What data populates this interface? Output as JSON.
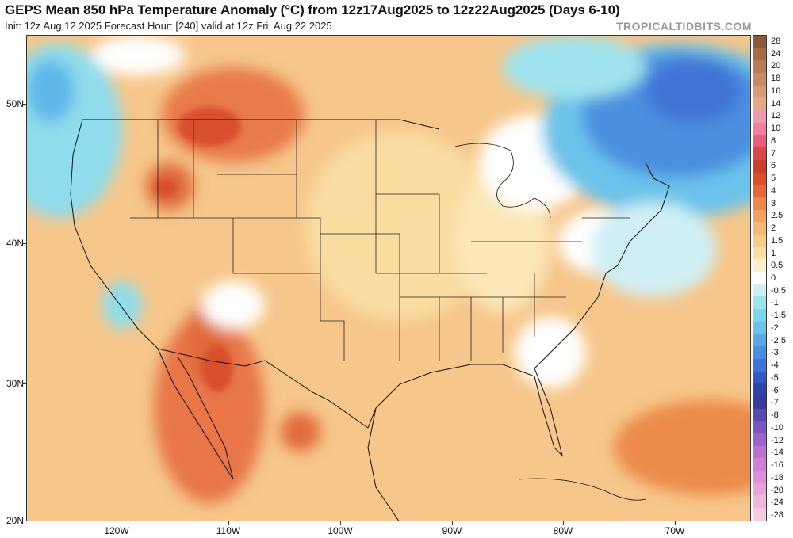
{
  "header": {
    "title": "GEPS Mean 850 hPa Temperature Anomaly (°C) from 12z17Aug2025 to 12z22Aug2025 (Days 6-10)",
    "subtitle": "Init: 12z Aug 12 2025   Forecast Hour: [240]   valid at 12z Fri, Aug 22 2025",
    "brand": "TROPICALTIDBITS.COM"
  },
  "axes": {
    "lat_labels": [
      "50N",
      "40N",
      "30N",
      "20N"
    ],
    "lon_labels": [
      "120W",
      "110W",
      "100W",
      "90W",
      "80W",
      "70W"
    ]
  },
  "colorbar": {
    "levels": [
      "28",
      "24",
      "20",
      "18",
      "16",
      "14",
      "12",
      "10",
      "8",
      "7",
      "6",
      "5",
      "4",
      "3",
      "2.5",
      "2",
      "1.5",
      "1",
      "0.5",
      "0",
      "-0.5",
      "-1",
      "-1.5",
      "-2",
      "-2.5",
      "-3",
      "-4",
      "-5",
      "-6",
      "-7",
      "-8",
      "-10",
      "-12",
      "-14",
      "-16",
      "-18",
      "-20",
      "-24",
      "-28"
    ],
    "colors": [
      "#8b5a3c",
      "#a66a4a",
      "#b87a58",
      "#c98a66",
      "#d79a76",
      "#e4aa88",
      "#ee9ab0",
      "#f27fa0",
      "#e8607a",
      "#d84a4a",
      "#c9402c",
      "#d9502e",
      "#e26a3a",
      "#ec8a4c",
      "#f2a263",
      "#f6b878",
      "#f8cb8d",
      "#fadfa6",
      "#fcefcf",
      "#ffffff",
      "#cfeff5",
      "#9fe3ee",
      "#7fd6ec",
      "#6cc2ea",
      "#5aa8e6",
      "#4b8fe0",
      "#3f74d6",
      "#3559c4",
      "#2d44a8",
      "#3a3a9c",
      "#5a4ab0",
      "#7a56c2",
      "#9a64cc",
      "#b872d2",
      "#d080d6",
      "#e090d8",
      "#e8a4d8",
      "#f0b8dc",
      "#f6cce0"
    ]
  },
  "map": {
    "background": "#f6c68a"
  }
}
